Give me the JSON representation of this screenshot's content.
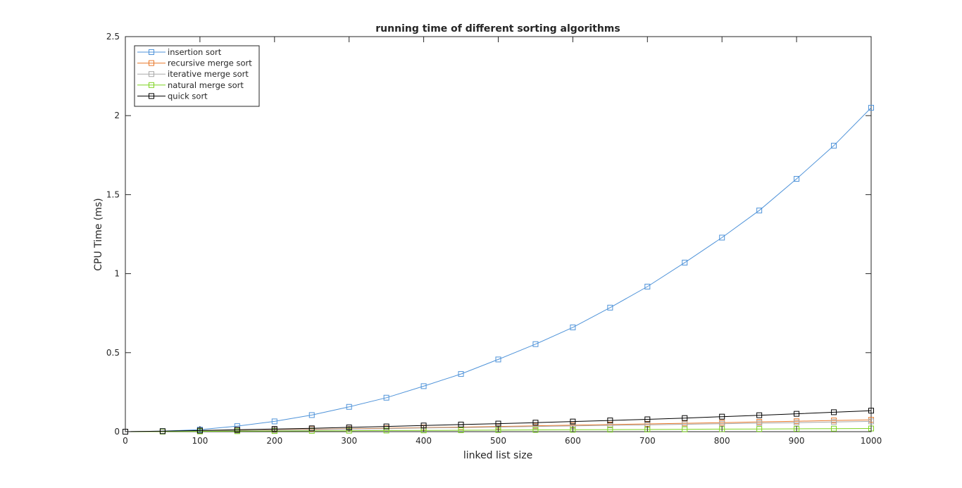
{
  "chart_data": {
    "type": "line",
    "title": "running time of different sorting algorithms",
    "xlabel": "linked list size",
    "ylabel": "CPU Time (ms)",
    "xlim": [
      0,
      1000
    ],
    "ylim": [
      0,
      2.5
    ],
    "xticks": [
      0,
      100,
      200,
      300,
      400,
      500,
      600,
      700,
      800,
      900,
      1000
    ],
    "yticks": [
      0,
      0.5,
      1,
      1.5,
      2,
      2.5
    ],
    "xtick_labels": [
      "0",
      "100",
      "200",
      "300",
      "400",
      "500",
      "600",
      "700",
      "800",
      "900",
      "1000"
    ],
    "ytick_labels": [
      "0",
      "0.5",
      "1",
      "1.5",
      "2",
      "2.5"
    ],
    "grid": false,
    "legend_position": "top-left",
    "x": [
      0,
      50,
      100,
      150,
      200,
      250,
      300,
      350,
      400,
      450,
      500,
      550,
      600,
      650,
      700,
      750,
      800,
      850,
      900,
      950,
      1000
    ],
    "series": [
      {
        "name": "insertion sort",
        "color": "#4f93d9",
        "marker": "square",
        "values": [
          0,
          0.003,
          0.013,
          0.035,
          0.065,
          0.105,
          0.157,
          0.215,
          0.288,
          0.365,
          0.457,
          0.554,
          0.66,
          0.785,
          0.918,
          1.07,
          1.228,
          1.4,
          1.6,
          1.81,
          2.05
        ]
      },
      {
        "name": "recursive merge sort",
        "color": "#e8792b",
        "marker": "square",
        "values": [
          0,
          0.002,
          0.005,
          0.008,
          0.011,
          0.015,
          0.018,
          0.022,
          0.026,
          0.029,
          0.033,
          0.037,
          0.041,
          0.045,
          0.049,
          0.053,
          0.057,
          0.062,
          0.066,
          0.071,
          0.075
        ]
      },
      {
        "name": "iterative merge sort",
        "color": "#a8a8a8",
        "marker": "square",
        "values": [
          0,
          0.002,
          0.004,
          0.007,
          0.01,
          0.013,
          0.016,
          0.019,
          0.023,
          0.026,
          0.029,
          0.033,
          0.036,
          0.04,
          0.043,
          0.047,
          0.05,
          0.054,
          0.057,
          0.061,
          0.065
        ]
      },
      {
        "name": "natural merge sort",
        "color": "#7ed321",
        "marker": "square",
        "values": [
          0,
          0.001,
          0.002,
          0.003,
          0.004,
          0.005,
          0.006,
          0.007,
          0.008,
          0.009,
          0.01,
          0.011,
          0.012,
          0.013,
          0.014,
          0.015,
          0.016,
          0.017,
          0.018,
          0.019,
          0.02
        ]
      },
      {
        "name": "quick sort",
        "color": "#000000",
        "marker": "square",
        "values": [
          0,
          0.003,
          0.007,
          0.012,
          0.017,
          0.021,
          0.027,
          0.033,
          0.039,
          0.045,
          0.051,
          0.057,
          0.064,
          0.071,
          0.078,
          0.086,
          0.095,
          0.104,
          0.113,
          0.123,
          0.133
        ]
      }
    ]
  }
}
